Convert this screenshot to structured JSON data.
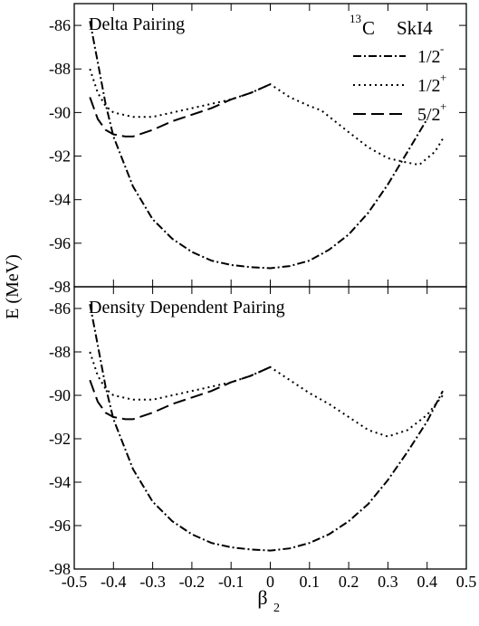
{
  "legend": {
    "nucleus_mass": "13",
    "nucleus_symbol": "C",
    "force": "SkI4",
    "entries": [
      {
        "label_main": "1/2",
        "label_sup": "-",
        "dash": "dashdot"
      },
      {
        "label_main": "1/2",
        "label_sup": "+",
        "dash": "dotted"
      },
      {
        "label_main": "5/2",
        "label_sup": "+",
        "dash": "dashed"
      }
    ]
  },
  "axes": {
    "ylabel": "E  (MeV)",
    "xlabel_main": "β",
    "xlabel_sub": "2",
    "xlim": [
      -0.5,
      0.5
    ],
    "ylim": [
      -98,
      -85
    ],
    "xticks": [
      -0.5,
      -0.4,
      -0.3,
      -0.2,
      -0.1,
      0,
      0.1,
      0.2,
      0.3,
      0.4,
      0.5
    ],
    "yticks": [
      -98,
      -96,
      -94,
      -92,
      -90,
      -88,
      -86
    ]
  },
  "chart_data": [
    {
      "type": "line",
      "title": "Delta Pairing",
      "series": [
        {
          "name": "1/2-",
          "dash": "dashdot",
          "x": [
            -0.46,
            -0.44,
            -0.42,
            -0.4,
            -0.35,
            -0.3,
            -0.25,
            -0.2,
            -0.15,
            -0.1,
            -0.05,
            0,
            0.05,
            0.1,
            0.15,
            0.2,
            0.25,
            0.3,
            0.35,
            0.4
          ],
          "y": [
            -85.8,
            -87.7,
            -89.6,
            -91.1,
            -93.4,
            -94.9,
            -95.8,
            -96.4,
            -96.8,
            -97.0,
            -97.1,
            -97.15,
            -97.05,
            -96.8,
            -96.3,
            -95.6,
            -94.6,
            -93.3,
            -91.8,
            -90.3
          ]
        },
        {
          "name": "1/2+",
          "dash": "dotted",
          "x": [
            -0.46,
            -0.44,
            -0.42,
            -0.4,
            -0.35,
            -0.3,
            -0.25,
            -0.2,
            -0.15,
            -0.1,
            -0.05,
            0,
            0.05,
            0.1,
            0.13,
            0.2,
            0.25,
            0.3,
            0.35,
            0.38,
            0.42,
            0.44
          ],
          "y": [
            -88.0,
            -89.1,
            -89.7,
            -90.0,
            -90.2,
            -90.2,
            -90.0,
            -89.8,
            -89.6,
            -89.4,
            -89.1,
            -88.7,
            -89.3,
            -89.7,
            -89.9,
            -90.9,
            -91.6,
            -92.1,
            -92.3,
            -92.4,
            -91.8,
            -91.2
          ]
        },
        {
          "name": "5/2+",
          "dash": "dashed",
          "x": [
            -0.46,
            -0.44,
            -0.42,
            -0.4,
            -0.37,
            -0.35,
            -0.3,
            -0.25,
            -0.2,
            -0.15,
            -0.1,
            -0.05,
            0
          ],
          "y": [
            -89.3,
            -90.3,
            -90.8,
            -91.0,
            -91.1,
            -91.1,
            -90.8,
            -90.4,
            -90.1,
            -89.8,
            -89.4,
            -89.1,
            -88.7
          ]
        }
      ]
    },
    {
      "type": "line",
      "title": "Density Dependent Pairing",
      "series": [
        {
          "name": "1/2-",
          "dash": "dashdot",
          "x": [
            -0.46,
            -0.44,
            -0.42,
            -0.4,
            -0.35,
            -0.3,
            -0.25,
            -0.2,
            -0.15,
            -0.1,
            -0.05,
            0,
            0.05,
            0.1,
            0.15,
            0.2,
            0.25,
            0.3,
            0.35,
            0.4,
            0.44
          ],
          "y": [
            -85.8,
            -87.7,
            -89.6,
            -91.1,
            -93.4,
            -94.9,
            -95.8,
            -96.4,
            -96.8,
            -97.0,
            -97.1,
            -97.15,
            -97.05,
            -96.8,
            -96.4,
            -95.8,
            -95.0,
            -93.9,
            -92.6,
            -91.2,
            -89.8
          ]
        },
        {
          "name": "1/2+",
          "dash": "dotted",
          "x": [
            -0.46,
            -0.44,
            -0.42,
            -0.4,
            -0.35,
            -0.3,
            -0.25,
            -0.2,
            -0.15,
            -0.1,
            -0.05,
            0,
            0.05,
            0.1,
            0.15,
            0.2,
            0.25,
            0.3,
            0.35,
            0.4,
            0.44
          ],
          "y": [
            -88.0,
            -89.1,
            -89.7,
            -90.0,
            -90.2,
            -90.2,
            -90.0,
            -89.8,
            -89.6,
            -89.4,
            -89.1,
            -88.7,
            -89.3,
            -89.9,
            -90.4,
            -91.0,
            -91.6,
            -91.9,
            -91.6,
            -90.9,
            -90.0
          ]
        },
        {
          "name": "5/2+",
          "dash": "dashed",
          "x": [
            -0.46,
            -0.44,
            -0.42,
            -0.4,
            -0.37,
            -0.35,
            -0.3,
            -0.25,
            -0.2,
            -0.15,
            -0.1,
            -0.05,
            0
          ],
          "y": [
            -89.3,
            -90.3,
            -90.8,
            -91.0,
            -91.1,
            -91.1,
            -90.8,
            -90.4,
            -90.1,
            -89.8,
            -89.4,
            -89.1,
            -88.7
          ]
        }
      ]
    }
  ]
}
